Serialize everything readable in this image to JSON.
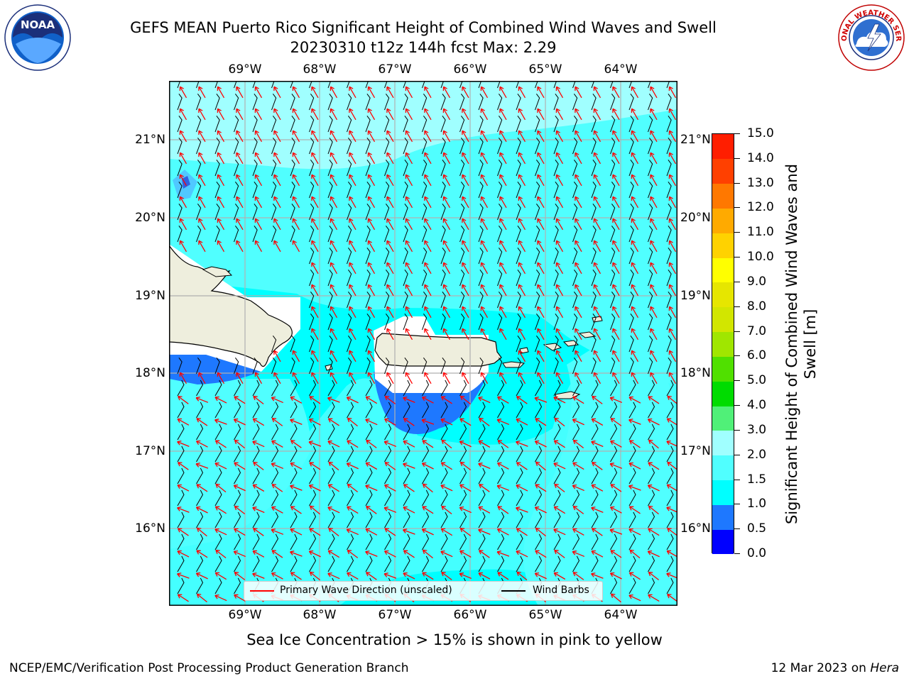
{
  "title_line1": "GEFS MEAN Puerto Rico Significant Height of Combined Wind Waves and Swell",
  "title_line2": "20230310 t12z 144h fcst   Max: 2.29",
  "lon_labels": [
    "69°W",
    "68°W",
    "67°W",
    "66°W",
    "65°W",
    "64°W"
  ],
  "lat_labels": [
    "21°N",
    "20°N",
    "19°N",
    "18°N",
    "17°N",
    "16°N"
  ],
  "colorbar": {
    "title": "Significant Height of Combined Wind Waves and Swell [m]",
    "tick_labels": [
      "0.0",
      "0.5",
      "1.0",
      "1.5",
      "2.0",
      "3.0",
      "4.0",
      "5.0",
      "6.0",
      "7.0",
      "8.0",
      "9.0",
      "10.0",
      "11.0",
      "12.0",
      "13.0",
      "14.0",
      "15.0"
    ],
    "colors": [
      "#0000ff",
      "#1e78ff",
      "#00ffff",
      "#50ffff",
      "#a0ffff",
      "#50f078",
      "#00dc00",
      "#50e000",
      "#a0e600",
      "#d2e600",
      "#e6e600",
      "#ffff00",
      "#ffd200",
      "#ffaa00",
      "#ff7800",
      "#ff4000",
      "#ff1e00"
    ]
  },
  "legend": {
    "primary_wave_label": "Primary Wave Direction (unscaled)",
    "primary_wave_color": "#ff0000",
    "wind_barbs_label": "Wind Barbs",
    "wind_barbs_color": "#000000"
  },
  "caption": "Sea Ice Concentration > 15% is shown in pink to yellow",
  "footer_left": "NCEP/EMC/Verification Post Processing Product Generation Branch",
  "footer_right_date": "12 Mar 2023 on ",
  "footer_right_host": "Hera",
  "logos": {
    "left": {
      "icon": "noaa-logo",
      "text": "NOAA"
    },
    "right": {
      "icon": "nws-logo",
      "text": "NATIONAL WEATHER SERVICE"
    }
  },
  "colors": {
    "land": "#eeeedd",
    "sea_1_1_5": "#00ffff",
    "sea_1_5_2": "#50ffff",
    "sea_2_3": "#a0ffff",
    "sea_0_5_1": "#1e78ff",
    "grid": "#b0b0b0"
  }
}
